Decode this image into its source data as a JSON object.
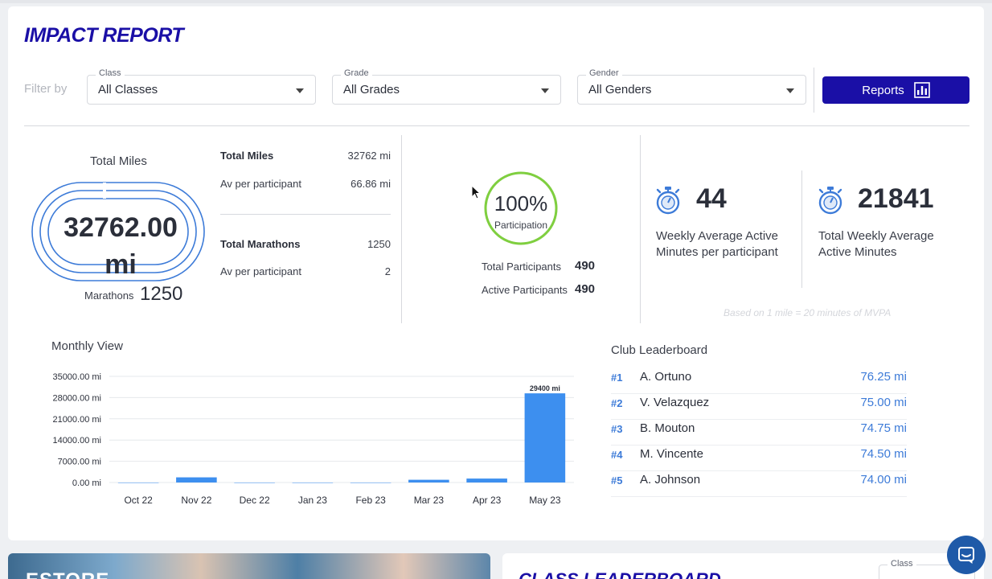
{
  "report": {
    "title": "IMPACT REPORT",
    "filter_label": "Filter by",
    "filters": [
      {
        "label": "Class",
        "value": "All Classes"
      },
      {
        "label": "Grade",
        "value": "All Grades"
      },
      {
        "label": "Gender",
        "value": "All Genders"
      }
    ],
    "reports_button": "Reports"
  },
  "miles": {
    "title": "Total Miles",
    "big_value": "32762.00",
    "big_unit": "mi",
    "marathons_label": "Marathons",
    "marathons_value": "1250",
    "stats": [
      {
        "label": "Total Miles",
        "value": "32762 mi"
      },
      {
        "label": "Av per participant",
        "value": "66.86 mi"
      },
      {
        "label": "Total Marathons",
        "value": "1250"
      },
      {
        "label": "Av per participant",
        "value": "2"
      }
    ]
  },
  "participation": {
    "percent_text": "100%",
    "percent_value": 100,
    "label": "Participation",
    "total_label": "Total Participants",
    "total_value": "490",
    "active_label": "Active Participants",
    "active_value": "490",
    "ring_color": "#7fcf3f"
  },
  "activity": {
    "weekly_avg_value": "44",
    "weekly_avg_label_1": "Weekly Average Active",
    "weekly_avg_label_2": "Minutes per participant",
    "total_weekly_value": "21841",
    "total_weekly_label_1": "Total Weekly Average",
    "total_weekly_label_2": "Active Minutes",
    "footnote": "Based on 1 mile = 20 minutes of MVPA",
    "icon": "stopwatch-icon"
  },
  "monthly_title": "Monthly View",
  "chart_data": {
    "type": "bar",
    "title": "",
    "categories": [
      "Oct 22",
      "Nov 22",
      "Dec 22",
      "Jan 23",
      "Feb 23",
      "Mar 23",
      "Apr 23",
      "May 23"
    ],
    "values": [
      0,
      1700,
      0,
      0,
      0,
      900,
      1300,
      29400
    ],
    "y_ticks": [
      "35000.00 mi",
      "28000.00 mi",
      "21000.00 mi",
      "14000.00 mi",
      "7000.00 mi",
      "0.00 mi"
    ],
    "ylim": [
      0,
      35000
    ],
    "data_labels": {
      "May 23": "29400 mi"
    },
    "bar_color": "#3d8fef",
    "grid": true
  },
  "leaderboard": {
    "title": "Club Leaderboard",
    "entries": [
      {
        "rank": "#1",
        "name": "A. Ortuno",
        "miles": "76.25 mi"
      },
      {
        "rank": "#2",
        "name": "V. Velazquez",
        "miles": "75.00 mi"
      },
      {
        "rank": "#3",
        "name": "B. Mouton",
        "miles": "74.75 mi"
      },
      {
        "rank": "#4",
        "name": "M. Vincente",
        "miles": "74.50 mi"
      },
      {
        "rank": "#5",
        "name": "A. Johnson",
        "miles": "74.00 mi"
      }
    ]
  },
  "bottom": {
    "estore_title": "ESTORE",
    "class_leaderboard_title": "CLASS LEADERBOARD",
    "class_filter_label": "Class"
  },
  "colors": {
    "brand": "#1a0fa6",
    "accent_blue": "#3d7bd8"
  }
}
